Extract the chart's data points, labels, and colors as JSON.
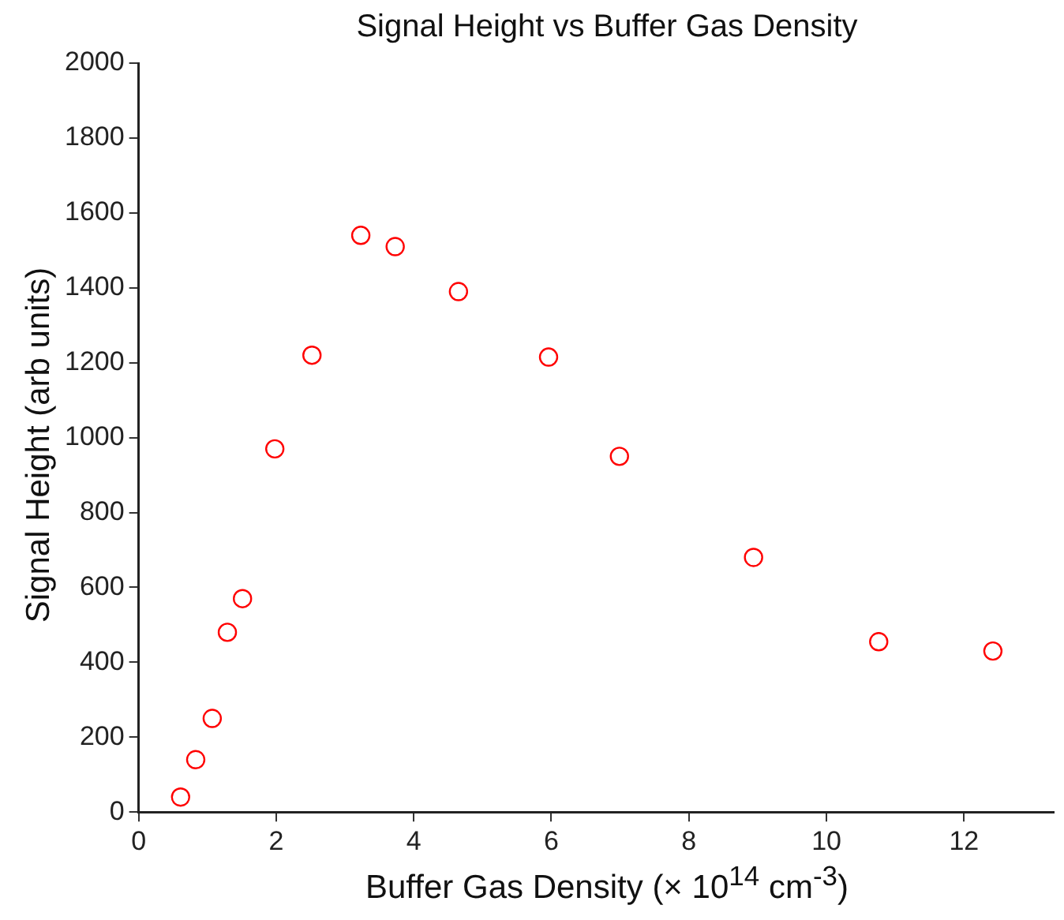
{
  "chart_data": {
    "type": "scatter",
    "title": "Signal Height vs Buffer Gas Density",
    "xlabel": "Buffer Gas Density (× 10$^{14}$ cm$^{-3}$)",
    "ylabel": "Signal Height (arb units)",
    "x": [
      0.61,
      0.83,
      1.07,
      1.29,
      1.51,
      1.98,
      2.52,
      3.23,
      3.73,
      4.65,
      5.96,
      6.99,
      8.94,
      10.76,
      12.42
    ],
    "series": [
      {
        "color": "#ff0000",
        "values": [
          40,
          140,
          250,
          480,
          570,
          970,
          1220,
          1540,
          1510,
          1390,
          1215,
          950,
          680,
          455,
          430
        ]
      }
    ],
    "xlim": [
      0,
      13.3
    ],
    "xticks": [
      0,
      2,
      4,
      6,
      8,
      10,
      12
    ],
    "ylim": [
      0,
      2000
    ],
    "yticks": [
      0,
      200,
      400,
      600,
      800,
      1000,
      1200,
      1400,
      1600,
      1800,
      2000
    ],
    "grid": false,
    "legend": false,
    "marker": "circle"
  }
}
